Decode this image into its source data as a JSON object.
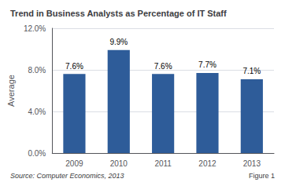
{
  "chart_data": {
    "type": "bar",
    "title": "Trend in Business Analysts as Percentage of IT Staff",
    "ylabel": "Average",
    "categories": [
      "2009",
      "2010",
      "2011",
      "2012",
      "2013"
    ],
    "values": [
      7.6,
      9.9,
      7.6,
      7.7,
      7.1
    ],
    "value_labels": [
      "7.6%",
      "9.9%",
      "7.6%",
      "7.7%",
      "7.1%"
    ],
    "data_labels": true,
    "color": "#2E5C99",
    "ylim": [
      0,
      12
    ],
    "yticks": [
      {
        "value": 0,
        "label": "0.0%"
      },
      {
        "value": 4,
        "label": "4.0%"
      },
      {
        "value": 8,
        "label": "8.0%"
      },
      {
        "value": 12,
        "label": "12.0%"
      }
    ],
    "grid": true,
    "annotations": [
      "Source: Computer Economics, 2013",
      "Figure 1"
    ]
  }
}
